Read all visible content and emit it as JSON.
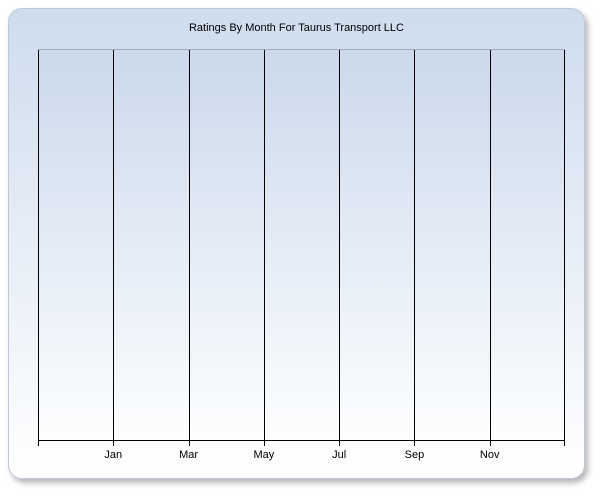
{
  "page": {
    "background": "#ffffff"
  },
  "chart": {
    "title": "Ratings By Month For Taurus Transport LLC"
  },
  "chart_data": {
    "type": "line",
    "title": "Ratings By Month For Taurus Transport LLC",
    "categories": [
      "Jan",
      "Mar",
      "May",
      "Jul",
      "Sep",
      "Nov"
    ],
    "series": [],
    "xlabel": "",
    "ylabel": "",
    "y_axis_tick_labels": "none",
    "x_gridline_count": 8,
    "grid": "vertical-only",
    "legend": "none",
    "notes": "empty plot area - no data points rendered"
  },
  "colors": {
    "panel_grad_top": "#cedcee",
    "panel_grad_bottom": "#ffffff",
    "plot_grad_top": "#cbd9ec",
    "plot_grad_bottom": "#fdfeff",
    "gridline": "#000000",
    "plot_top_border": "#9fa8b5",
    "axis_line": "#000000",
    "title_text": "#000000",
    "label_text": "#000000",
    "panel_border": "#bcc7d8"
  }
}
